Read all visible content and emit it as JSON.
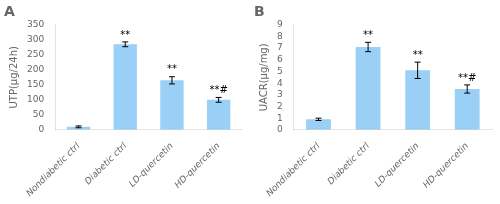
{
  "chart_data": [
    {
      "type": "bar",
      "title": "A",
      "ylabel": "UTP(μg/24h)",
      "categories": [
        "Nondiabetic ctrl",
        "Diabetic ctrl",
        "LD-quercetin",
        "HD-quercetin"
      ],
      "values": [
        10,
        285,
        165,
        100
      ],
      "errors": [
        3,
        8,
        12,
        8
      ],
      "annotations": [
        null,
        "**",
        "**",
        "**#"
      ],
      "ylim": [
        0,
        350
      ],
      "yticks": [
        0,
        50,
        100,
        150,
        200,
        250,
        300,
        350
      ],
      "grid": false
    },
    {
      "type": "bar",
      "title": "B",
      "ylabel": "UACR(μg/mg)",
      "categories": [
        "Nondiabetic ctrl",
        "Diabetic ctrl",
        "LD-quercetin",
        "HD-quercetin"
      ],
      "values": [
        0.9,
        7.1,
        5.1,
        3.5
      ],
      "errors": [
        0.1,
        0.4,
        0.7,
        0.35
      ],
      "annotations": [
        null,
        "**",
        "**",
        "**#"
      ],
      "ylim": [
        0,
        9
      ],
      "yticks": [
        0,
        1,
        2,
        3,
        4,
        5,
        6,
        7,
        8,
        9
      ],
      "grid": false
    }
  ]
}
